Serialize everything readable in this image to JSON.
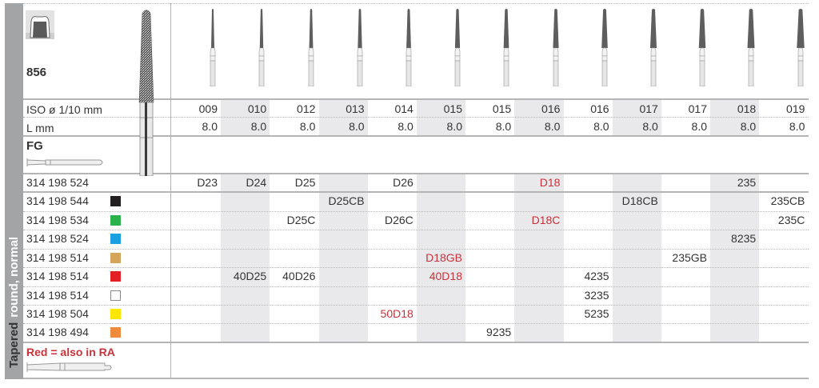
{
  "sidebar": {
    "label_bold_dark": "Tapered",
    "label_white": "round, normal"
  },
  "header": {
    "shape_number": "856",
    "tooth_icon": "crown-prep-icon",
    "bur_image": "tapered-round-diamond-bur-image",
    "row_labels": {
      "iso": "ISO ø 1/10 mm",
      "length": "L mm",
      "shank": "FG"
    },
    "shank_icon": "fg-shank-icon"
  },
  "columns": [
    {
      "iso": "009",
      "length": "8.0",
      "shaded": false
    },
    {
      "iso": "010",
      "length": "8.0",
      "shaded": true
    },
    {
      "iso": "012",
      "length": "8.0",
      "shaded": false
    },
    {
      "iso": "013",
      "length": "8.0",
      "shaded": true
    },
    {
      "iso": "014",
      "length": "8.0",
      "shaded": false
    },
    {
      "iso": "015",
      "length": "8.0",
      "shaded": true
    },
    {
      "iso": "015",
      "length": "8.0",
      "shaded": false
    },
    {
      "iso": "016",
      "length": "8.0",
      "shaded": true
    },
    {
      "iso": "016",
      "length": "8.0",
      "shaded": false
    },
    {
      "iso": "017",
      "length": "8.0",
      "shaded": true
    },
    {
      "iso": "017",
      "length": "8.0",
      "shaded": false
    },
    {
      "iso": "018",
      "length": "8.0",
      "shaded": true
    },
    {
      "iso": "019",
      "length": "8.0",
      "shaded": false
    }
  ],
  "rows": [
    {
      "code": "314 198 524",
      "swatch": null,
      "cells": [
        "D23",
        "D24",
        "D25",
        "",
        "D26",
        "",
        "",
        "D18",
        "",
        "",
        "",
        "235",
        ""
      ],
      "red": [
        false,
        false,
        false,
        false,
        false,
        false,
        false,
        true,
        false,
        false,
        false,
        false,
        false
      ]
    },
    {
      "code": "314 198 544",
      "swatch": "#231f20",
      "cells": [
        "",
        "",
        "",
        "D25CB",
        "",
        "",
        "",
        "",
        "",
        "D18CB",
        "",
        "",
        "235CB"
      ],
      "red": [
        false,
        false,
        false,
        false,
        false,
        false,
        false,
        false,
        false,
        false,
        false,
        false,
        false
      ]
    },
    {
      "code": "314 198 534",
      "swatch": "#2bb24c",
      "cells": [
        "",
        "",
        "D25C",
        "",
        "D26C",
        "",
        "",
        "D18C",
        "",
        "",
        "",
        "",
        "235C"
      ],
      "red": [
        false,
        false,
        false,
        false,
        false,
        false,
        false,
        true,
        false,
        false,
        false,
        false,
        false
      ]
    },
    {
      "code": "314 198 524",
      "swatch": "#1ba1e2",
      "cells": [
        "",
        "",
        "",
        "",
        "",
        "",
        "",
        "",
        "",
        "",
        "",
        "8235",
        ""
      ],
      "red": [
        false,
        false,
        false,
        false,
        false,
        false,
        false,
        false,
        false,
        false,
        false,
        false,
        false
      ]
    },
    {
      "code": "314 198 514",
      "swatch": "#d4a55a",
      "cells": [
        "",
        "",
        "",
        "",
        "",
        "D18GB",
        "",
        "",
        "",
        "",
        "235GB",
        "",
        ""
      ],
      "red": [
        false,
        false,
        false,
        false,
        false,
        true,
        false,
        false,
        false,
        false,
        false,
        false,
        false
      ]
    },
    {
      "code": "314 198 514",
      "swatch": "#e31e24",
      "cells": [
        "",
        "40D25",
        "40D26",
        "",
        "",
        "40D18",
        "",
        "",
        "4235",
        "",
        "",
        "",
        ""
      ],
      "red": [
        false,
        false,
        false,
        false,
        false,
        true,
        false,
        false,
        false,
        false,
        false,
        false,
        false
      ]
    },
    {
      "code": "314 198 514",
      "swatch": "#ffffff",
      "cells": [
        "",
        "",
        "",
        "",
        "",
        "",
        "",
        "",
        "3235",
        "",
        "",
        "",
        ""
      ],
      "red": [
        false,
        false,
        false,
        false,
        false,
        false,
        false,
        false,
        false,
        false,
        false,
        false,
        false
      ]
    },
    {
      "code": "314 198 504",
      "swatch": "#ffe600",
      "cells": [
        "",
        "",
        "",
        "",
        "50D18",
        "",
        "",
        "",
        "5235",
        "",
        "",
        "",
        ""
      ],
      "red": [
        false,
        false,
        false,
        false,
        true,
        false,
        false,
        false,
        false,
        false,
        false,
        false,
        false
      ]
    },
    {
      "code": "314 198 494",
      "swatch": "#f08a3c",
      "cells": [
        "",
        "",
        "",
        "",
        "",
        "",
        "9235",
        "",
        "",
        "",
        "",
        "",
        ""
      ],
      "red": [
        false,
        false,
        false,
        false,
        false,
        false,
        false,
        false,
        false,
        false,
        false,
        false,
        false
      ]
    }
  ],
  "footer": {
    "note": "Red = also in RA",
    "ra_icon": "ra-shank-icon"
  },
  "colors": {
    "red_text": "#c8323a",
    "shade": "#e9e9eb",
    "sidebar": "#a3a4a6"
  }
}
